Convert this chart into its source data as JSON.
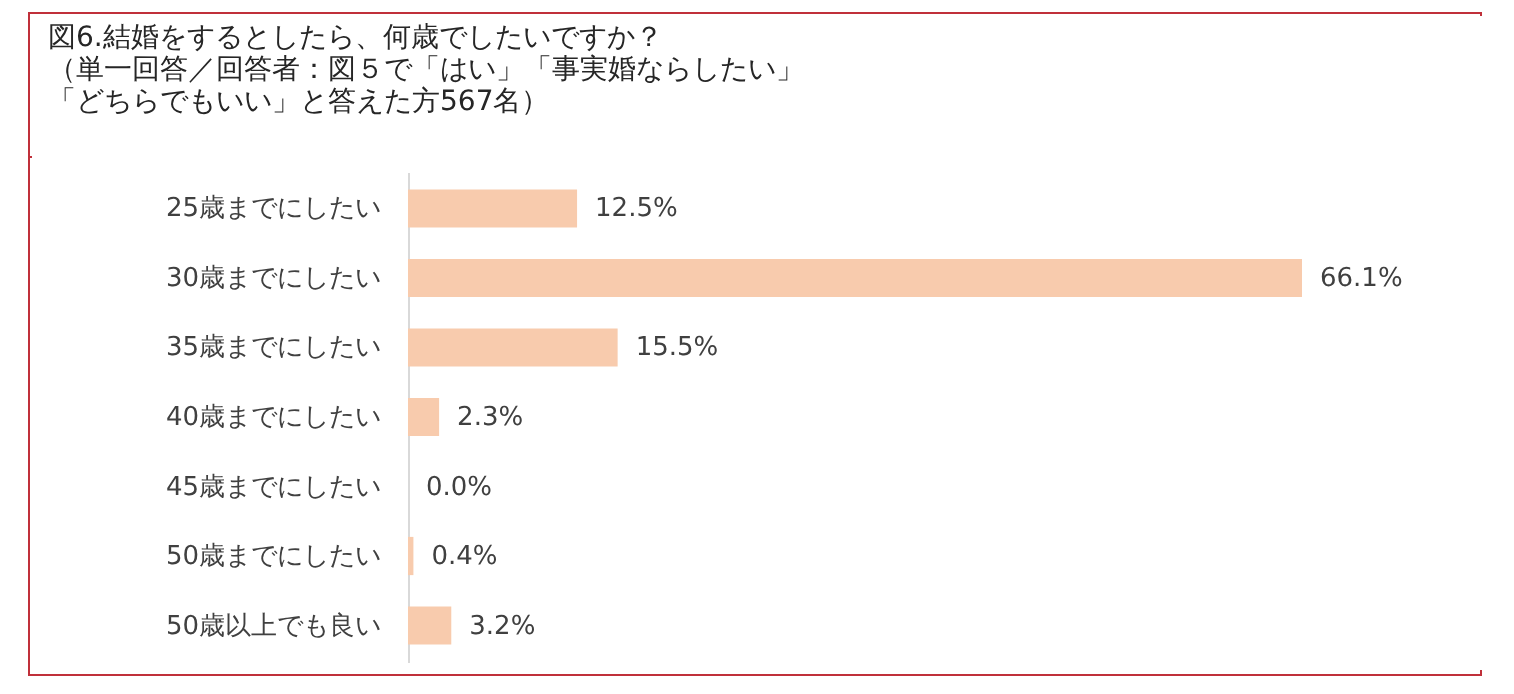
{
  "chart_data": {
    "type": "bar",
    "orientation": "horizontal",
    "title": "図6.結婚をするとしたら、何歳でしたいですか？",
    "subtitle": [
      "（単一回答／回答者：図５で「はい」「事実婚ならしたい」",
      "「どちらでもいい」と答えた方567名）"
    ],
    "categories": [
      "25歳までにしたい",
      "30歳までにしたい",
      "35歳までにしたい",
      "40歳までにしたい",
      "45歳までにしたい",
      "50歳までにしたい",
      "50歳以上でも良い"
    ],
    "values": [
      12.5,
      66.1,
      15.5,
      2.3,
      0.0,
      0.4,
      3.2
    ],
    "value_labels": [
      "12.5%",
      "66.1%",
      "15.5%",
      "2.3%",
      "0.0%",
      "0.4%",
      "3.2%"
    ],
    "color": "#f8cbad"
  }
}
